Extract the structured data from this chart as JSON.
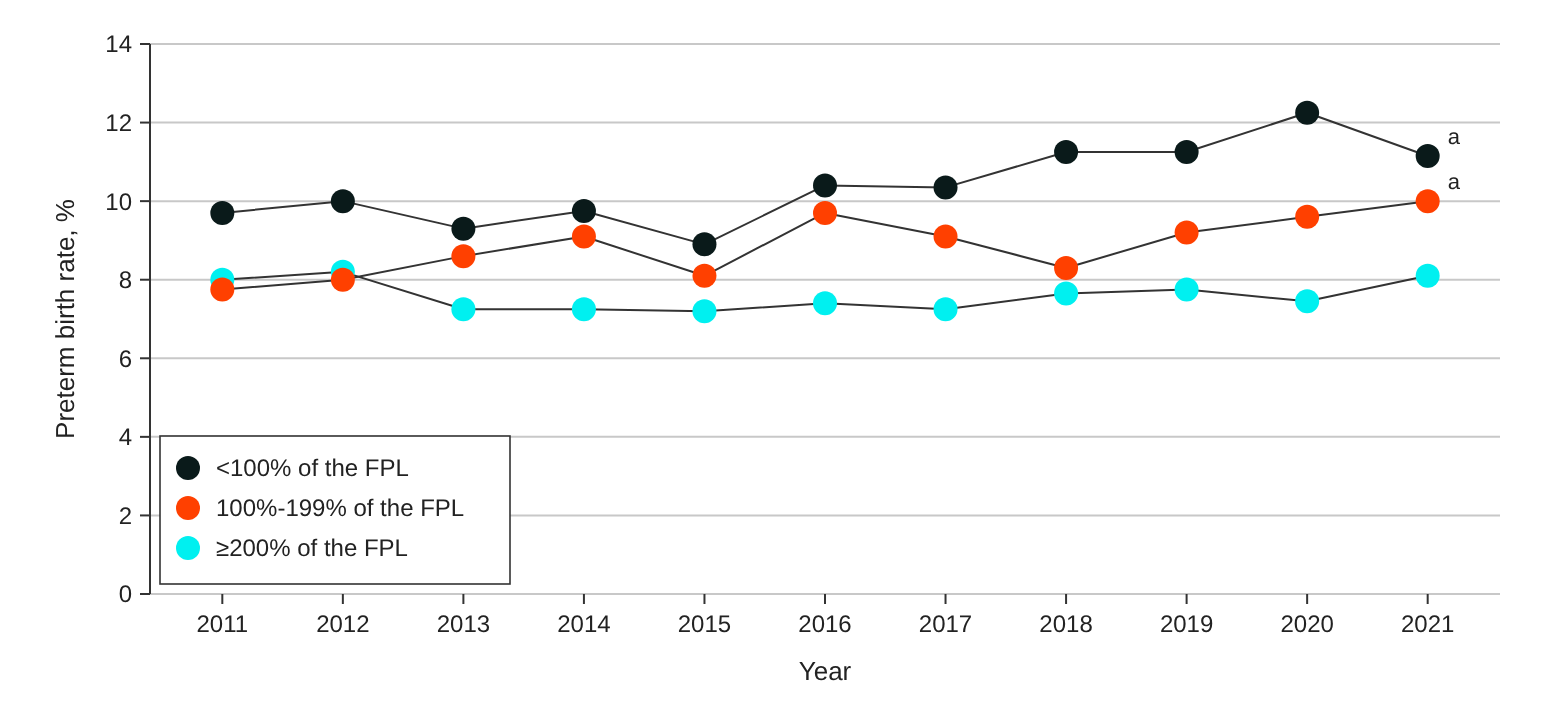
{
  "chart_data": {
    "type": "line",
    "xlabel": "Year",
    "ylabel": "Preterm birth rate, %",
    "categories": [
      "2011",
      "2012",
      "2013",
      "2014",
      "2015",
      "2016",
      "2017",
      "2018",
      "2019",
      "2020",
      "2021"
    ],
    "series": [
      {
        "name": "<100% of the FPL",
        "color": "#0a1a1a",
        "values": [
          9.7,
          10.0,
          9.3,
          9.75,
          8.9,
          10.4,
          10.35,
          11.25,
          11.25,
          12.25,
          11.15
        ]
      },
      {
        "name": "100%-199% of the FPL",
        "color": "#ff4000",
        "values": [
          7.75,
          8.0,
          8.6,
          9.1,
          8.1,
          9.7,
          9.1,
          8.3,
          9.2,
          9.6,
          10.0
        ]
      },
      {
        "name": "≥200% of the FPL",
        "color": "#00f0f0",
        "values": [
          8.0,
          8.2,
          7.25,
          7.25,
          7.2,
          7.4,
          7.25,
          7.65,
          7.75,
          7.45,
          8.1
        ]
      }
    ],
    "annotations": [
      {
        "text": "a",
        "x": "2021",
        "y": 11.15
      },
      {
        "text": "a",
        "x": "2021",
        "y": 10.0
      }
    ],
    "ylim": [
      0,
      14
    ],
    "yticks": [
      0,
      2,
      4,
      6,
      8,
      10,
      12,
      14
    ],
    "grid": "y",
    "legend": "bottom left",
    "marker": "circle",
    "line_style": "solid"
  }
}
